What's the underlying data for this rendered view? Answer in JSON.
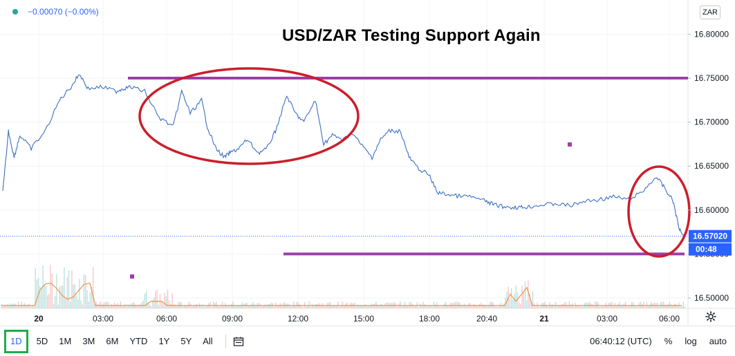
{
  "header": {
    "change_text": "−0.00070 (−0.00%)",
    "currency": "ZAR"
  },
  "colors": {
    "price_line": "#3a6fc4",
    "support_resistance": "#9c3fa8",
    "ellipse": "#cc1e2a",
    "volume_red": "#ef9a9a",
    "volume_green": "#80cbc4",
    "volume_avg": "#ef8a3b",
    "last_price_badge": "#2962ff"
  },
  "chart_data": {
    "type": "line",
    "title": "USD/ZAR Testing Support Again",
    "ylim": [
      16.5,
      16.82
    ],
    "y_ticks": [
      "16.80000",
      "16.75000",
      "16.70000",
      "16.65000",
      "16.60000",
      "16.55000",
      "16.50000"
    ],
    "x_ticks": [
      "20",
      "03:00",
      "06:00",
      "09:00",
      "12:00",
      "15:00",
      "18:00",
      "20:40",
      "21",
      "03:00",
      "06:00"
    ],
    "last_price": "16.57020",
    "countdown": "00:48",
    "resistance_level": 16.75,
    "support_level": 16.55,
    "series": [
      {
        "x": [
          0,
          0.2,
          0.4,
          0.6,
          1,
          1.5,
          2,
          2.4,
          2.7,
          3,
          3.5,
          4,
          4.2,
          4.5,
          5,
          5.5,
          6,
          6.3,
          6.6,
          7,
          7.2,
          7.5,
          7.8,
          8,
          8.3,
          8.6,
          9,
          9.3,
          9.6,
          10,
          10.3,
          10.6,
          11,
          11.3,
          11.6,
          12,
          12.3,
          12.6,
          13,
          13.3,
          13.6,
          14,
          14.3,
          14.6,
          15,
          15.3,
          15.6,
          16,
          16.5,
          17,
          17.3,
          17.6,
          18,
          18.3,
          18.6,
          19,
          19.5,
          20,
          20.5,
          21,
          21.5,
          22,
          22.5,
          23,
          23.3,
          23.6,
          23.8,
          24
        ],
        "y": [
          16.62,
          16.69,
          16.66,
          16.685,
          16.67,
          16.69,
          16.725,
          16.74,
          16.755,
          16.738,
          16.74,
          16.735,
          16.738,
          16.74,
          16.735,
          16.705,
          16.695,
          16.735,
          16.71,
          16.725,
          16.695,
          16.67,
          16.66,
          16.665,
          16.67,
          16.68,
          16.665,
          16.67,
          16.69,
          16.73,
          16.71,
          16.7,
          16.725,
          16.675,
          16.685,
          16.68,
          16.688,
          16.675,
          16.66,
          16.68,
          16.69,
          16.69,
          16.66,
          16.648,
          16.64,
          16.62,
          16.618,
          16.616,
          16.615,
          16.61,
          16.606,
          16.604,
          16.603,
          16.603,
          16.604,
          16.606,
          16.607,
          16.605,
          16.61,
          16.612,
          16.615,
          16.612,
          16.62,
          16.638,
          16.625,
          16.61,
          16.58,
          16.57
        ]
      }
    ]
  },
  "toolbar": {
    "timeframes": [
      "1D",
      "5D",
      "1M",
      "3M",
      "6M",
      "YTD",
      "1Y",
      "5Y",
      "All"
    ],
    "time": "06:40:12 (UTC)",
    "percent": "%",
    "log": "log",
    "auto": "auto"
  }
}
